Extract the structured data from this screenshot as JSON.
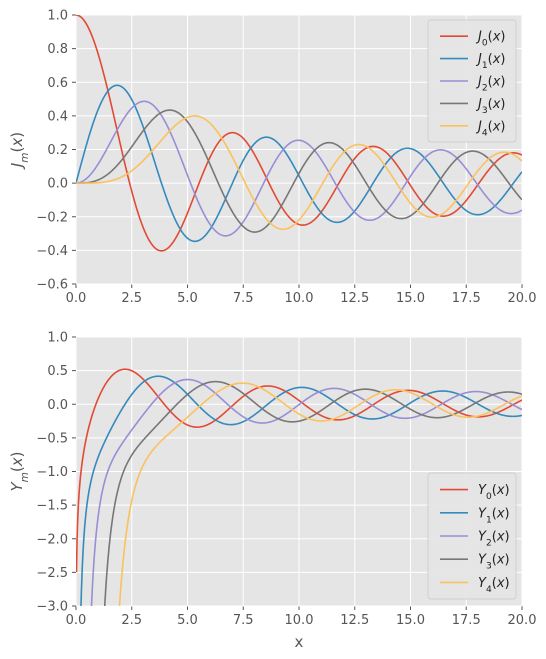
{
  "chart_data": [
    {
      "type": "line",
      "ylabel": "J_m(x)",
      "xlabel": "",
      "xlim": [
        0,
        20
      ],
      "ylim": [
        -0.6,
        1.0
      ],
      "grid": true,
      "legend_position": "top-right",
      "x_ticks": [
        "0.0",
        "2.5",
        "5.0",
        "7.5",
        "10.0",
        "12.5",
        "15.0",
        "17.5",
        "20.0"
      ],
      "y_ticks": [
        "1.0",
        "0.8",
        "0.6",
        "0.4",
        "0.2",
        "0.0",
        "−0.2",
        "−0.4",
        "−0.6"
      ],
      "function": "besselJ",
      "x_sampled": [
        0,
        20
      ],
      "series": [
        {
          "name": "J_0(x)",
          "order": 0,
          "color": "#E24A33"
        },
        {
          "name": "J_1(x)",
          "order": 1,
          "color": "#348ABD"
        },
        {
          "name": "J_2(x)",
          "order": 2,
          "color": "#988ED5"
        },
        {
          "name": "J_3(x)",
          "order": 3,
          "color": "#777777"
        },
        {
          "name": "J_4(x)",
          "order": 4,
          "color": "#FBC15E"
        }
      ]
    },
    {
      "type": "line",
      "ylabel": "Y_m(x)",
      "xlabel": "x",
      "xlim": [
        0,
        20
      ],
      "ylim": [
        -3.0,
        1.0
      ],
      "grid": true,
      "legend_position": "bottom-right",
      "x_ticks": [
        "0.0",
        "2.5",
        "5.0",
        "7.5",
        "10.0",
        "12.5",
        "15.0",
        "17.5",
        "20.0"
      ],
      "y_ticks": [
        "1.0",
        "0.5",
        "0.0",
        "−0.5",
        "−1.0",
        "−1.5",
        "−2.0",
        "−2.5",
        "−3.0"
      ],
      "function": "besselY",
      "x_sampled": [
        0,
        20
      ],
      "series": [
        {
          "name": "Y_0(x)",
          "order": 0,
          "color": "#E24A33"
        },
        {
          "name": "Y_1(x)",
          "order": 1,
          "color": "#348ABD"
        },
        {
          "name": "Y_2(x)",
          "order": 2,
          "color": "#988ED5"
        },
        {
          "name": "Y_3(x)",
          "order": 3,
          "color": "#777777"
        },
        {
          "name": "Y_4(x)",
          "order": 4,
          "color": "#FBC15E"
        }
      ]
    }
  ]
}
